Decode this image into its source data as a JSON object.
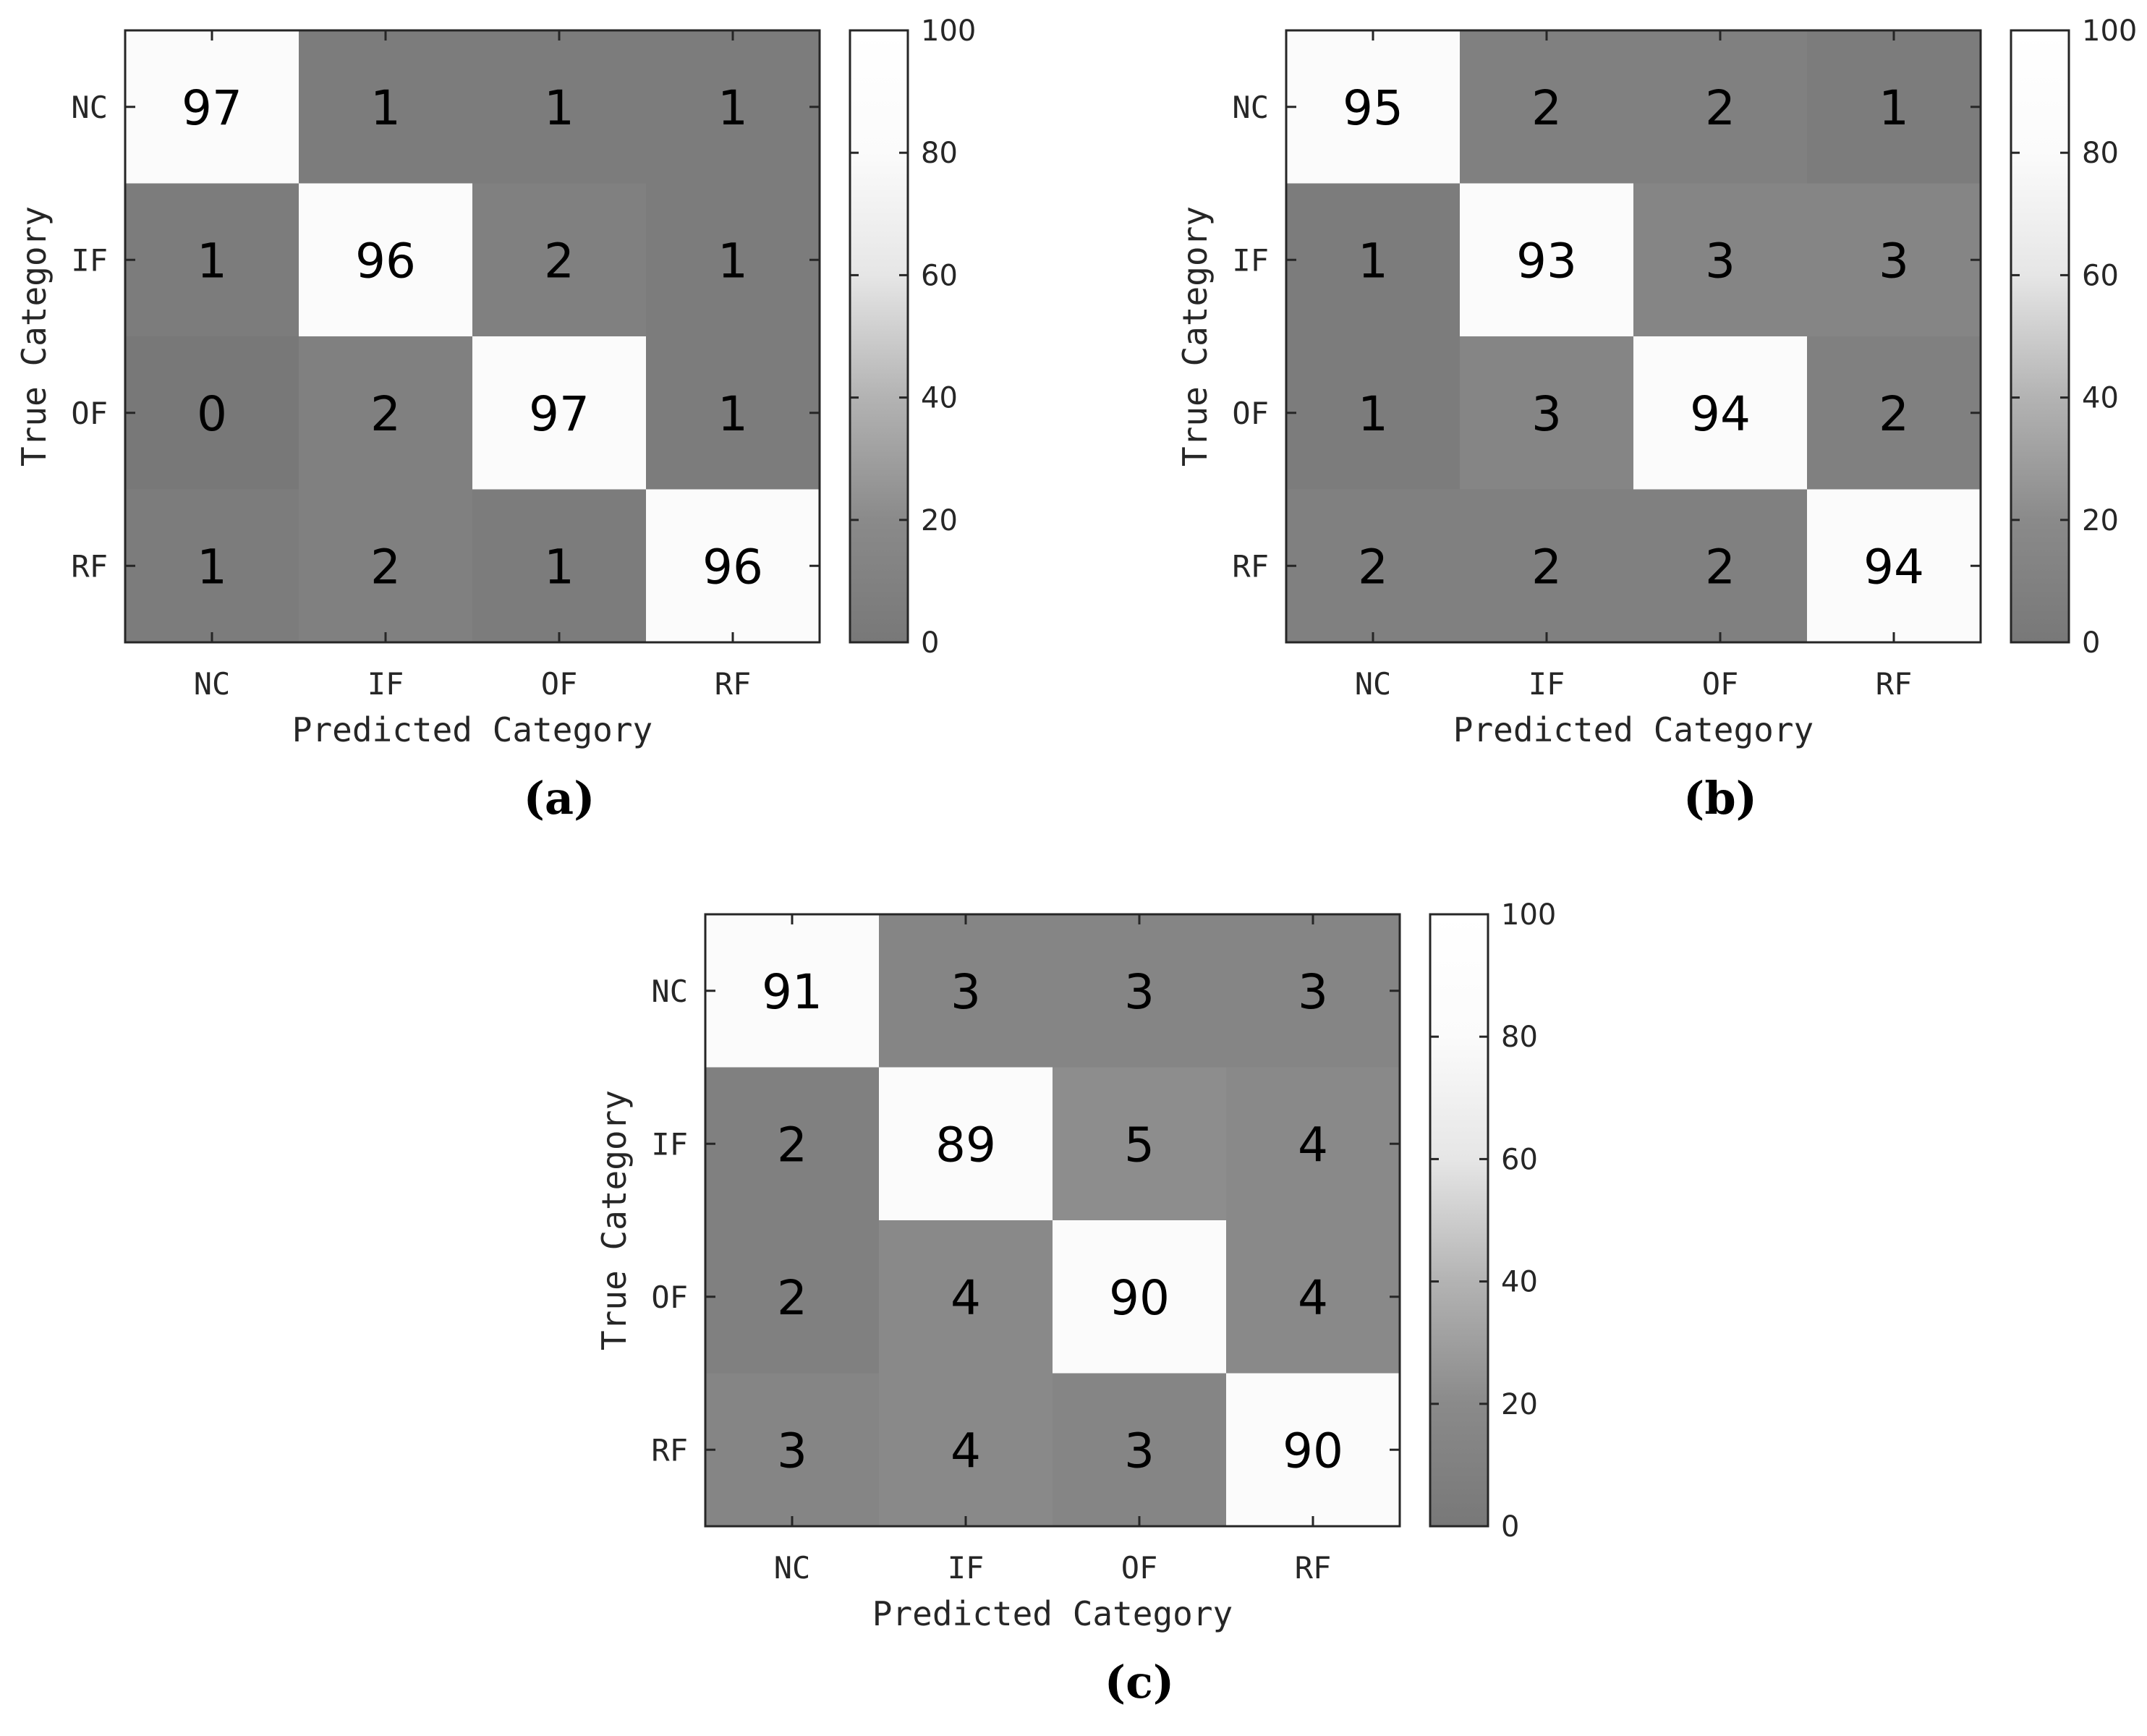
{
  "chart_data": [
    {
      "type": "heatmap",
      "panel_label": "(a)",
      "xlabel": "Predicted Category",
      "ylabel": "True Category",
      "x_categories": [
        "NC",
        "IF",
        "OF",
        "RF"
      ],
      "y_categories": [
        "NC",
        "IF",
        "OF",
        "RF"
      ],
      "values": [
        [
          97,
          1,
          1,
          1
        ],
        [
          1,
          96,
          2,
          1
        ],
        [
          0,
          2,
          97,
          1
        ],
        [
          1,
          2,
          1,
          96
        ]
      ],
      "colorbar": {
        "range": [
          0,
          100
        ],
        "ticks": [
          "0",
          "20",
          "40",
          "60",
          "80",
          "100"
        ]
      }
    },
    {
      "type": "heatmap",
      "panel_label": "(b)",
      "xlabel": "Predicted Category",
      "ylabel": "True Category",
      "x_categories": [
        "NC",
        "IF",
        "OF",
        "RF"
      ],
      "y_categories": [
        "NC",
        "IF",
        "OF",
        "RF"
      ],
      "values": [
        [
          95,
          2,
          2,
          1
        ],
        [
          1,
          93,
          3,
          3
        ],
        [
          1,
          3,
          94,
          2
        ],
        [
          2,
          2,
          2,
          94
        ]
      ],
      "colorbar": {
        "range": [
          0,
          100
        ],
        "ticks": [
          "0",
          "20",
          "40",
          "60",
          "80",
          "100"
        ]
      }
    },
    {
      "type": "heatmap",
      "panel_label": "(c)",
      "xlabel": "Predicted Category",
      "ylabel": "True Category",
      "x_categories": [
        "NC",
        "IF",
        "OF",
        "RF"
      ],
      "y_categories": [
        "NC",
        "IF",
        "OF",
        "RF"
      ],
      "values": [
        [
          91,
          3,
          3,
          3
        ],
        [
          2,
          89,
          5,
          4
        ],
        [
          2,
          4,
          90,
          4
        ],
        [
          3,
          4,
          3,
          90
        ]
      ],
      "colorbar": {
        "range": [
          0,
          100
        ],
        "ticks": [
          "0",
          "20",
          "40",
          "60",
          "80",
          "100"
        ]
      }
    }
  ]
}
